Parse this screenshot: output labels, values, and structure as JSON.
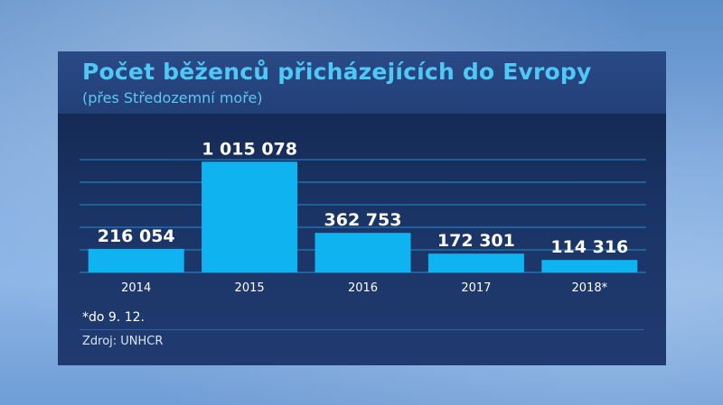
{
  "header": {
    "title": "Počet běženců přicházejících do Evropy",
    "subtitle": "(přes Středozemní moře)"
  },
  "footer": {
    "note": "*do 9. 12.",
    "source": "Zdroj: UNHCR"
  },
  "colors": {
    "bar": "#0eb3ef",
    "gridline": "#1f8fd0",
    "title": "#4fc8f5"
  },
  "chart_data": {
    "type": "bar",
    "categories": [
      "2014",
      "2015",
      "2016",
      "2017",
      "2018*"
    ],
    "values": [
      216054,
      1015078,
      362753,
      172301,
      114316
    ],
    "value_labels": [
      "216 054",
      "1 015 078",
      "362 753",
      "172 301",
      "114 316"
    ],
    "title": "Počet běženců přicházejících do Evropy",
    "subtitle": "(přes Středozemní moře)",
    "xlabel": "",
    "ylabel": "",
    "ylim": [
      0,
      1200000
    ],
    "grid": true,
    "legend": "none"
  }
}
